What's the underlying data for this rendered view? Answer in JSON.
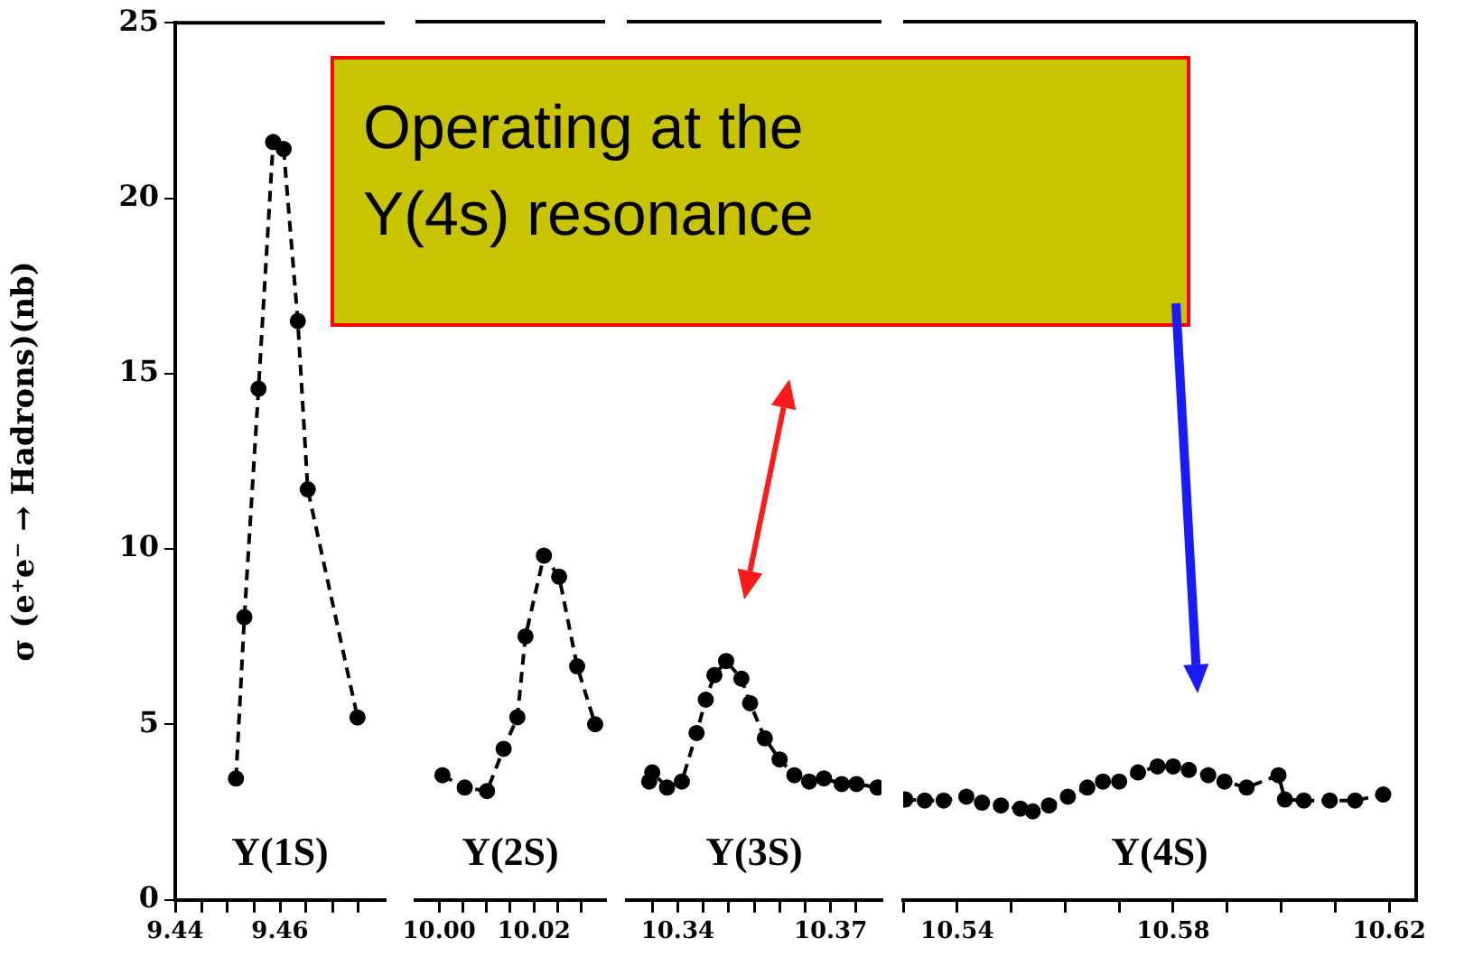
{
  "chart_data": [
    {
      "type": "line",
      "ylabel": "σ (e⁺e⁻ → Hadrons)(nb)",
      "xlim": [
        9.44,
        9.48
      ],
      "ylim": [
        0,
        25
      ],
      "yticks": [
        0,
        5,
        10,
        15,
        20,
        25
      ],
      "xticks": [
        9.44,
        {
          "value": 9.445,
          "label": null
        },
        {
          "value": 9.45,
          "label": null
        },
        {
          "value": 9.455,
          "label": null
        },
        9.46,
        {
          "value": 9.465,
          "label": null
        },
        {
          "value": 9.47,
          "label": null
        },
        {
          "value": 9.475,
          "label": null
        }
      ],
      "series": [
        {
          "color": "#000000",
          "x": [
            9.4516,
            9.4532,
            9.4559,
            9.4587,
            9.4607,
            9.4634,
            9.4653,
            9.4748
          ],
          "values": [
            3.46,
            8.06,
            14.57,
            21.6,
            21.4,
            16.5,
            11.7,
            5.2
          ]
        }
      ],
      "marker": "circle",
      "line_style": "dashed",
      "grid": false,
      "legend": false,
      "annotations": [
        "Υ(1S)"
      ]
    },
    {
      "type": "line",
      "xlim": [
        9.995,
        10.035
      ],
      "ylim": [
        0,
        25
      ],
      "yticks": [
        0,
        5,
        10,
        15,
        20,
        25
      ],
      "tick_labels": "x",
      "xticks": [
        {
          "value": 10.0,
          "label": "10.00"
        },
        {
          "value": 10.005,
          "label": null
        },
        {
          "value": 10.01,
          "label": null
        },
        {
          "value": 10.015,
          "label": null
        },
        10.02,
        {
          "value": 10.025,
          "label": null
        },
        {
          "value": 10.03,
          "label": null
        }
      ],
      "series": [
        {
          "color": "#000000",
          "x": [
            10.0007,
            10.0054,
            10.0101,
            10.0136,
            10.0165,
            10.0182,
            10.0221,
            10.0253,
            10.0291,
            10.0329
          ],
          "values": [
            3.55,
            3.2,
            3.1,
            4.3,
            5.2,
            7.5,
            9.8,
            9.2,
            6.65,
            5.0
          ]
        }
      ],
      "marker": "circle",
      "line_style": "dashed",
      "grid": false,
      "legend": false,
      "annotations": [
        "Υ(2S)"
      ]
    },
    {
      "type": "line",
      "xlim": [
        10.33,
        10.38
      ],
      "ylim": [
        0,
        25
      ],
      "yticks": [
        0,
        5,
        10,
        15,
        20,
        25
      ],
      "tick_labels": "x",
      "xticks": [
        {
          "value": 10.335,
          "label": null
        },
        10.34,
        {
          "value": 10.345,
          "label": null
        },
        {
          "value": 10.35,
          "label": null
        },
        {
          "value": 10.355,
          "label": null
        },
        {
          "value": 10.36,
          "label": null
        },
        {
          "value": 10.365,
          "label": null
        },
        10.37,
        {
          "value": 10.375,
          "label": null
        }
      ],
      "series": [
        {
          "color": "#000000",
          "x": [
            10.3344,
            10.335,
            10.3379,
            10.3408,
            10.3437,
            10.3455,
            10.3472,
            10.3495,
            10.3525,
            10.3542,
            10.3571,
            10.36,
            10.3629,
            10.3658,
            10.3687,
            10.3722,
            10.3751,
            10.3792
          ],
          "values": [
            3.37,
            3.63,
            3.2,
            3.37,
            4.75,
            5.7,
            6.4,
            6.8,
            6.3,
            5.6,
            4.6,
            4.0,
            3.55,
            3.37,
            3.46,
            3.3,
            3.3,
            3.2
          ]
        }
      ],
      "marker": "circle",
      "line_style": "dashed",
      "grid": false,
      "legend": false,
      "annotations": [
        "Υ(3S)"
      ]
    },
    {
      "type": "line",
      "xlim": [
        10.53,
        10.625
      ],
      "ylim": [
        0,
        25
      ],
      "yticks": [
        0,
        5,
        10,
        15,
        20,
        25
      ],
      "tick_labels": "x",
      "xticks": [
        {
          "value": 10.53,
          "label": null
        },
        10.54,
        {
          "value": 10.55,
          "label": null
        },
        {
          "value": 10.56,
          "label": null
        },
        {
          "value": 10.57,
          "label": null
        },
        10.58,
        {
          "value": 10.59,
          "label": null
        },
        {
          "value": 10.6,
          "label": null
        },
        {
          "value": 10.61,
          "label": null
        },
        10.62
      ],
      "series": [
        {
          "color": "#000000",
          "x": [
            10.5304,
            10.534,
            10.5375,
            10.5417,
            10.5446,
            10.5481,
            10.5517,
            10.554,
            10.557,
            10.5605,
            10.5641,
            10.567,
            10.57,
            10.5735,
            10.5771,
            10.58,
            10.5829,
            10.5865,
            10.5895,
            10.5936,
            10.5995,
            10.6007,
            10.6042,
            10.609,
            10.6137,
            10.6189
          ],
          "values": [
            2.86,
            2.83,
            2.83,
            2.94,
            2.77,
            2.69,
            2.6,
            2.52,
            2.69,
            2.94,
            3.2,
            3.37,
            3.37,
            3.63,
            3.8,
            3.8,
            3.7,
            3.55,
            3.37,
            3.2,
            3.55,
            2.86,
            2.83,
            2.83,
            2.83,
            3.0
          ]
        }
      ],
      "marker": "circle",
      "line_style": "dashed",
      "grid": false,
      "legend": false,
      "annotations": [
        "Υ(4S)"
      ]
    },
    {
      "type": "other",
      "annotations": [
        "Operating at the Υ(4s) resonance"
      ]
    }
  ]
}
